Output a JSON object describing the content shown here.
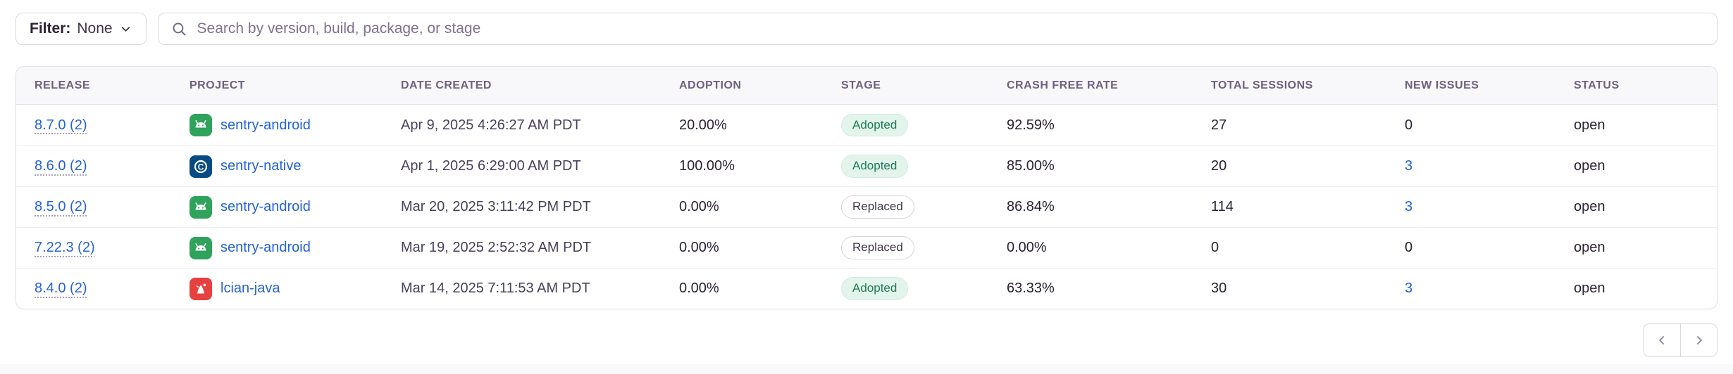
{
  "filter": {
    "label": "Filter:",
    "value": "None"
  },
  "search": {
    "placeholder": "Search by version, build, package, or stage"
  },
  "table": {
    "columns": [
      "RELEASE",
      "PROJECT",
      "DATE CREATED",
      "ADOPTION",
      "STAGE",
      "CRASH FREE RATE",
      "TOTAL SESSIONS",
      "NEW ISSUES",
      "STATUS"
    ],
    "rows": [
      {
        "release": "8.7.0 (2)",
        "project": "sentry-android",
        "platform_icon": "android-icon",
        "date_created": "Apr 9, 2025 4:26:27 AM PDT",
        "adoption": "20.00%",
        "stage": "Adopted",
        "crash_free_rate": "92.59%",
        "total_sessions": "27",
        "new_issues": "0",
        "new_issues_is_link": false,
        "status": "open"
      },
      {
        "release": "8.6.0 (2)",
        "project": "sentry-native",
        "platform_icon": "c-icon",
        "date_created": "Apr 1, 2025 6:29:00 AM PDT",
        "adoption": "100.00%",
        "stage": "Adopted",
        "crash_free_rate": "85.00%",
        "total_sessions": "20",
        "new_issues": "3",
        "new_issues_is_link": true,
        "status": "open"
      },
      {
        "release": "8.5.0 (2)",
        "project": "sentry-android",
        "platform_icon": "android-icon",
        "date_created": "Mar 20, 2025 3:11:42 PM PDT",
        "adoption": "0.00%",
        "stage": "Replaced",
        "crash_free_rate": "86.84%",
        "total_sessions": "114",
        "new_issues": "3",
        "new_issues_is_link": true,
        "status": "open"
      },
      {
        "release": "7.22.3 (2)",
        "project": "sentry-android",
        "platform_icon": "android-icon",
        "date_created": "Mar 19, 2025 2:52:32 AM PDT",
        "adoption": "0.00%",
        "stage": "Replaced",
        "crash_free_rate": "0.00%",
        "total_sessions": "0",
        "new_issues": "0",
        "new_issues_is_link": false,
        "status": "open"
      },
      {
        "release": "8.4.0 (2)",
        "project": "lcian-java",
        "platform_icon": "java-icon",
        "date_created": "Mar 14, 2025 7:11:53 AM PDT",
        "adoption": "0.00%",
        "stage": "Adopted",
        "crash_free_rate": "63.33%",
        "total_sessions": "30",
        "new_issues": "3",
        "new_issues_is_link": true,
        "status": "open"
      }
    ]
  },
  "pagination": {
    "prev_icon": "chevron-left-icon",
    "next_icon": "chevron-right-icon"
  },
  "colors": {
    "link_blue": "#2562D4",
    "adopted_text": "#1D7A55",
    "adopted_bg": "#E2F4EB",
    "border": "#DCD8E2",
    "header_bg": "#F8F7FA",
    "header_text": "#6E6180",
    "android_icon_bg": "#2FA25C",
    "c_icon_bg": "#084B83",
    "java_icon_bg": "#E64040"
  }
}
